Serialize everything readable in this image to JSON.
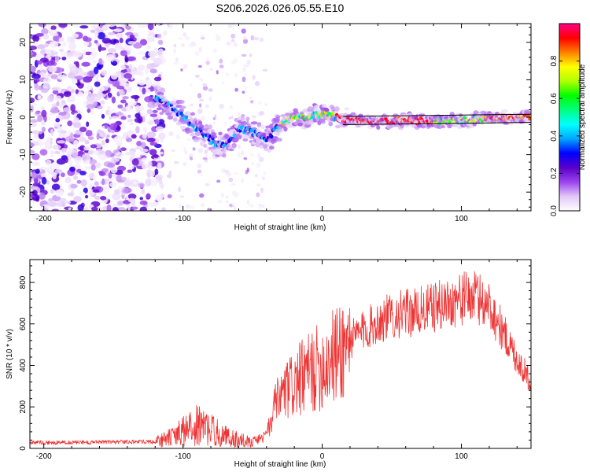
{
  "title": "S206.2026.026.05.55.E10",
  "chart_data": [
    {
      "type": "heatmap",
      "name": "spectrogram",
      "xlabel": "Height of straight line (km)",
      "ylabel": "Frequency (Hz)",
      "xlim": [
        -210,
        150
      ],
      "ylim": [
        -25,
        25
      ],
      "xticks": [
        -200,
        -100,
        0,
        100
      ],
      "yticks": [
        -20,
        -10,
        0,
        10,
        20
      ],
      "ridge": {
        "x": [
          -120,
          -110,
          -100,
          -90,
          -80,
          -70,
          -60,
          -50,
          -40,
          -30,
          -20,
          -10,
          0,
          10,
          20,
          40,
          60,
          80,
          100,
          120,
          150
        ],
        "frequency": [
          5,
          3,
          0,
          -3,
          -6,
          -8,
          -3,
          -4,
          -6,
          -2,
          0,
          0,
          1,
          0,
          -1,
          -1,
          -1,
          -1,
          -1,
          0,
          0
        ]
      },
      "colorbar": {
        "label": "Normalized spectral amplitude",
        "range": [
          0,
          1
        ],
        "ticks": [
          0.0,
          0.2,
          0.4,
          0.6,
          0.8
        ],
        "tick_labels": [
          "0.0",
          "0.2",
          "0.4",
          "0.6",
          "0.8"
        ],
        "colors": [
          "#ffffff",
          "#e2c8f8",
          "#9a44ee",
          "#5a00c8",
          "#0000ff",
          "#00a8ff",
          "#00ffff",
          "#00ff80",
          "#00ff00",
          "#b0ff00",
          "#ffff00",
          "#ff8000",
          "#ff0000",
          "#ff0088"
        ]
      }
    },
    {
      "type": "line",
      "name": "snr",
      "xlabel": "Height of straight line (km)",
      "ylabel": "SNR (10 * v/v)",
      "xlim": [
        -210,
        150
      ],
      "ylim": [
        0,
        910
      ],
      "xticks": [
        -200,
        -100,
        0,
        100
      ],
      "yticks": [
        0,
        200,
        400,
        600,
        800
      ],
      "color": "#ee3333",
      "envelope": {
        "x": [
          -210,
          -120,
          -110,
          -100,
          -90,
          -80,
          -70,
          -60,
          -50,
          -40,
          -35,
          -30,
          -20,
          -10,
          0,
          10,
          20,
          30,
          40,
          50,
          60,
          70,
          80,
          90,
          100,
          110,
          120,
          130,
          140,
          150
        ],
        "snr": [
          25,
          30,
          50,
          80,
          110,
          90,
          60,
          40,
          35,
          60,
          180,
          250,
          310,
          360,
          400,
          450,
          520,
          570,
          610,
          640,
          650,
          660,
          680,
          700,
          720,
          730,
          690,
          560,
          430,
          320
        ]
      }
    }
  ]
}
